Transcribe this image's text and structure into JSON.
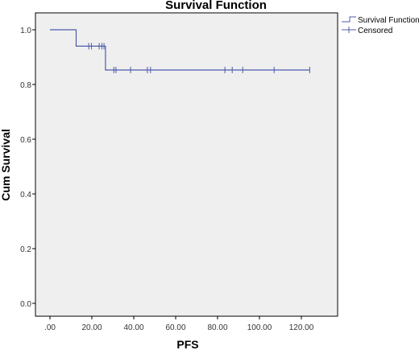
{
  "chart_data": {
    "type": "line",
    "title": "Survival Function",
    "xlabel": "PFS",
    "ylabel": "Cum Survival",
    "xlim": [
      0,
      125
    ],
    "ylim": [
      0,
      1.05
    ],
    "x_ticks": [
      0,
      20,
      40,
      60,
      80,
      100,
      120
    ],
    "x_tick_labels": [
      ".00",
      "20.00",
      "40.00",
      "60.00",
      "80.00",
      "100.00",
      "120.00"
    ],
    "y_ticks": [
      0,
      0.2,
      0.4,
      0.6,
      0.8,
      1.0
    ],
    "y_tick_labels": [
      "0.0",
      "0.2",
      "0.4",
      "0.6",
      "0.8",
      "1.0"
    ],
    "grid": false,
    "legend_position": "top-right",
    "colors": {
      "series": "#4B5BAA",
      "plot_bg": "#EFEFEF"
    },
    "series": [
      {
        "name": "Survival Function",
        "kind": "step",
        "x": [
          0,
          12.5,
          12.5,
          26.5,
          26.5,
          124
        ],
        "y": [
          1.0,
          1.0,
          0.94,
          0.94,
          0.853,
          0.853
        ]
      },
      {
        "name": "Censored",
        "kind": "marker",
        "x": [
          18.5,
          19.8,
          23.5,
          24.8,
          25.8,
          30.5,
          31.5,
          38.5,
          46.5,
          48.0,
          83.5,
          87.0,
          92.0,
          107.0,
          124.0
        ],
        "y": [
          0.94,
          0.94,
          0.94,
          0.94,
          0.94,
          0.853,
          0.853,
          0.853,
          0.853,
          0.853,
          0.853,
          0.853,
          0.853,
          0.853,
          0.853
        ]
      }
    ]
  }
}
